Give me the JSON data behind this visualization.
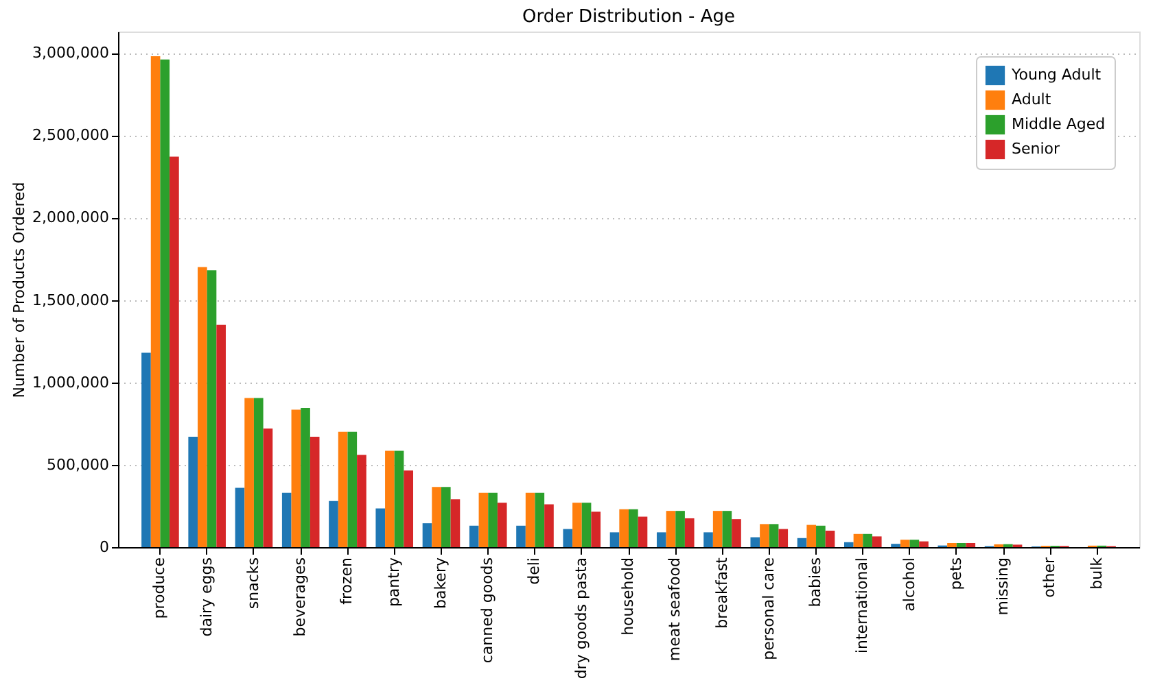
{
  "chart_data": {
    "type": "bar",
    "title": "Order Distribution - Age",
    "ylabel": "Number of Products Ordered",
    "categories": [
      "produce",
      "dairy eggs",
      "snacks",
      "beverages",
      "frozen",
      "pantry",
      "bakery",
      "canned goods",
      "deli",
      "dry goods pasta",
      "household",
      "meat seafood",
      "breakfast",
      "personal care",
      "babies",
      "international",
      "alcohol",
      "pets",
      "missing",
      "other",
      "bulk"
    ],
    "series": [
      {
        "name": "Young Adult",
        "color": "#1f77b4",
        "values": [
          1180000,
          670000,
          360000,
          330000,
          280000,
          235000,
          145000,
          130000,
          130000,
          110000,
          90000,
          90000,
          90000,
          60000,
          55000,
          30000,
          20000,
          10000,
          6000,
          4000,
          null
        ]
      },
      {
        "name": "Adult",
        "color": "#ff7f0e",
        "values": [
          2980000,
          1700000,
          905000,
          835000,
          700000,
          585000,
          365000,
          330000,
          330000,
          270000,
          230000,
          220000,
          220000,
          140000,
          135000,
          80000,
          45000,
          25000,
          17000,
          8000,
          9000
        ]
      },
      {
        "name": "Middle Aged",
        "color": "#2ca02c",
        "values": [
          2960000,
          1680000,
          905000,
          845000,
          700000,
          585000,
          365000,
          330000,
          330000,
          270000,
          230000,
          220000,
          220000,
          140000,
          130000,
          80000,
          45000,
          25000,
          18000,
          8000,
          9000
        ]
      },
      {
        "name": "Senior",
        "color": "#d62728",
        "values": [
          2370000,
          1350000,
          720000,
          670000,
          560000,
          465000,
          290000,
          270000,
          260000,
          215000,
          185000,
          175000,
          170000,
          110000,
          100000,
          65000,
          35000,
          25000,
          15000,
          7000,
          6000
        ]
      }
    ],
    "ylim": [
      0,
      3130000
    ],
    "yticks": [
      {
        "value": 0,
        "label": "0"
      },
      {
        "value": 500000,
        "label": "500,000"
      },
      {
        "value": 1000000,
        "label": "1,000,000"
      },
      {
        "value": 1500000,
        "label": "1,500,000"
      },
      {
        "value": 2000000,
        "label": "2,000,000"
      },
      {
        "value": 2500000,
        "label": "2,500,000"
      },
      {
        "value": 3000000,
        "label": "3,000,000"
      }
    ],
    "grid": "y",
    "legend": "top right"
  }
}
